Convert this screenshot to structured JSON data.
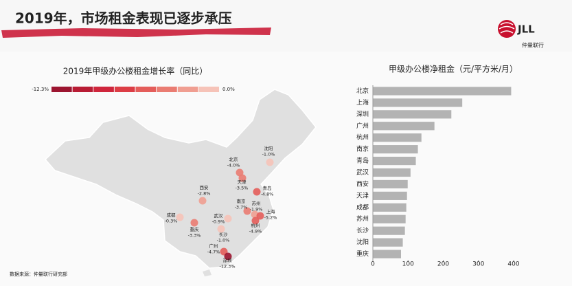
{
  "header": {
    "title": "2019年，市场租金表现已逐步承压",
    "logo": "JLL",
    "logo_sub": "仲量联行"
  },
  "source": "数据来源：仲量联行研究部",
  "chart_data": [
    {
      "type": "map",
      "title": "2019年甲级办公楼租金增长率（同比）",
      "categories": [
        "北京",
        "沈阳",
        "天津",
        "青岛",
        "西安",
        "南京",
        "苏州",
        "上海",
        "杭州",
        "成都",
        "重庆",
        "武汉",
        "长沙",
        "广州",
        "深圳"
      ],
      "values": [
        -4.0,
        -1.0,
        -3.5,
        -4.8,
        -2.8,
        -3.7,
        -1.9,
        -5.2,
        -4.9,
        -0.3,
        -3.3,
        -0.9,
        -1.0,
        -4.7,
        -12.3
      ],
      "value_labels": [
        "-4.0%",
        "-1.0%",
        "-3.5%",
        "-4.8%",
        "-2.8%",
        "-3.7%",
        "-1.9%",
        "-5.2%",
        "-4.9%",
        "-0.3%",
        "-3.3%",
        "-0.9%",
        "-1.0%",
        "-4.7%",
        "-12.3%"
      ],
      "clim": [
        -12.3,
        0
      ],
      "cticks": [
        {
          "value": -12.3,
          "label": "-12.3%"
        },
        {
          "value": 0,
          "label": "0.0%"
        }
      ],
      "colors": [
        "#9c1530",
        "#b81c34",
        "#cf263c",
        "#dc3d45",
        "#e45d5a",
        "#ea7c72",
        "#f09e91",
        "#f6c3b8"
      ]
    },
    {
      "type": "hbar",
      "title": "甲级办公楼净租金（元/平方米/月）",
      "categories": [
        "北京",
        "上海",
        "深圳",
        "广州",
        "杭州",
        "南京",
        "青岛",
        "武汉",
        "西安",
        "天津",
        "成都",
        "苏州",
        "长沙",
        "沈阳",
        "重庆"
      ],
      "values": [
        393,
        254,
        223,
        175,
        138,
        128,
        122,
        107,
        99,
        97,
        95,
        93,
        91,
        85,
        80
      ],
      "color": "#b3b3b3",
      "xlim": [
        0,
        400
      ],
      "xticks": [
        0,
        100,
        200,
        300,
        400
      ]
    }
  ]
}
